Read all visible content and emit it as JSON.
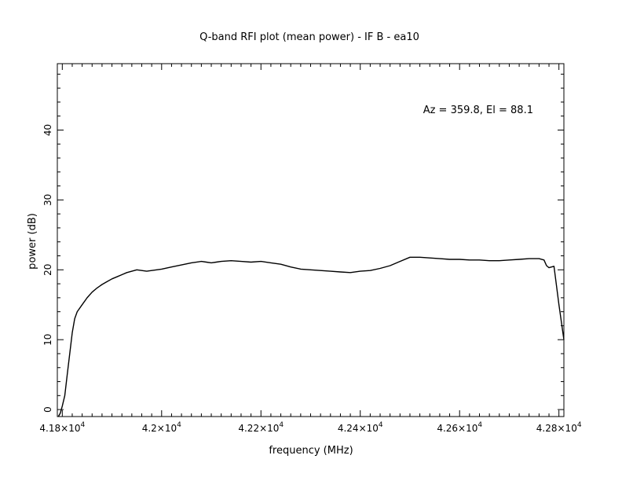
{
  "chart_data": {
    "type": "line",
    "title": "Q-band RFI plot (mean power) - IF B - ea10",
    "xlabel": "frequency (MHz)",
    "ylabel": "power (dB)",
    "annotation": "Az = 359.8, El = 88.1",
    "xlim": [
      41790,
      42810
    ],
    "ylim": [
      -1,
      49.5
    ],
    "x_ticks": [
      {
        "value": 41800,
        "label": "4.18×10",
        "exp": "4"
      },
      {
        "value": 42000,
        "label": "4.2×10",
        "exp": "4"
      },
      {
        "value": 42200,
        "label": "4.22×10",
        "exp": "4"
      },
      {
        "value": 42400,
        "label": "4.24×10",
        "exp": "4"
      },
      {
        "value": 42600,
        "label": "4.26×10",
        "exp": "4"
      },
      {
        "value": 42800,
        "label": "4.28×10",
        "exp": "4"
      }
    ],
    "y_ticks": [
      {
        "value": 0,
        "label": "0"
      },
      {
        "value": 10,
        "label": "10"
      },
      {
        "value": 20,
        "label": "20"
      },
      {
        "value": 30,
        "label": "30"
      },
      {
        "value": 40,
        "label": "40"
      }
    ],
    "grid": false,
    "line_color": "#000000",
    "series": [
      {
        "x": [
          41792,
          41796,
          41800,
          41805,
          41810,
          41815,
          41820,
          41825,
          41830,
          41840,
          41850,
          41860,
          41870,
          41880,
          41890,
          41900,
          41910,
          41920,
          41930,
          41940,
          41950,
          41960,
          41970,
          41980,
          41990,
          42000,
          42020,
          42040,
          42060,
          42080,
          42090,
          42100,
          42110,
          42120,
          42140,
          42160,
          42180,
          42200,
          42220,
          42240,
          42260,
          42280,
          42300,
          42320,
          42340,
          42360,
          42380,
          42400,
          42420,
          42440,
          42460,
          42480,
          42500,
          42520,
          42540,
          42560,
          42580,
          42600,
          42620,
          42640,
          42660,
          42680,
          42700,
          42720,
          42740,
          42760,
          42770,
          42775,
          42780,
          42790,
          42800,
          42810
        ],
        "values": [
          -1.0,
          -0.5,
          0.5,
          2.0,
          5.0,
          8.0,
          11.0,
          13.0,
          14.0,
          15.0,
          16.0,
          16.8,
          17.4,
          17.9,
          18.3,
          18.7,
          19.0,
          19.3,
          19.6,
          19.8,
          20.0,
          19.9,
          19.8,
          19.9,
          20.0,
          20.1,
          20.4,
          20.7,
          21.0,
          21.2,
          21.1,
          21.0,
          21.1,
          21.2,
          21.3,
          21.2,
          21.1,
          21.2,
          21.0,
          20.8,
          20.4,
          20.1,
          20.0,
          19.9,
          19.8,
          19.7,
          19.6,
          19.8,
          19.9,
          20.2,
          20.6,
          21.2,
          21.8,
          21.8,
          21.7,
          21.6,
          21.5,
          21.5,
          21.4,
          21.4,
          21.3,
          21.3,
          21.4,
          21.5,
          21.6,
          21.6,
          21.4,
          20.6,
          20.3,
          20.5,
          15.0,
          10.0
        ]
      }
    ]
  }
}
